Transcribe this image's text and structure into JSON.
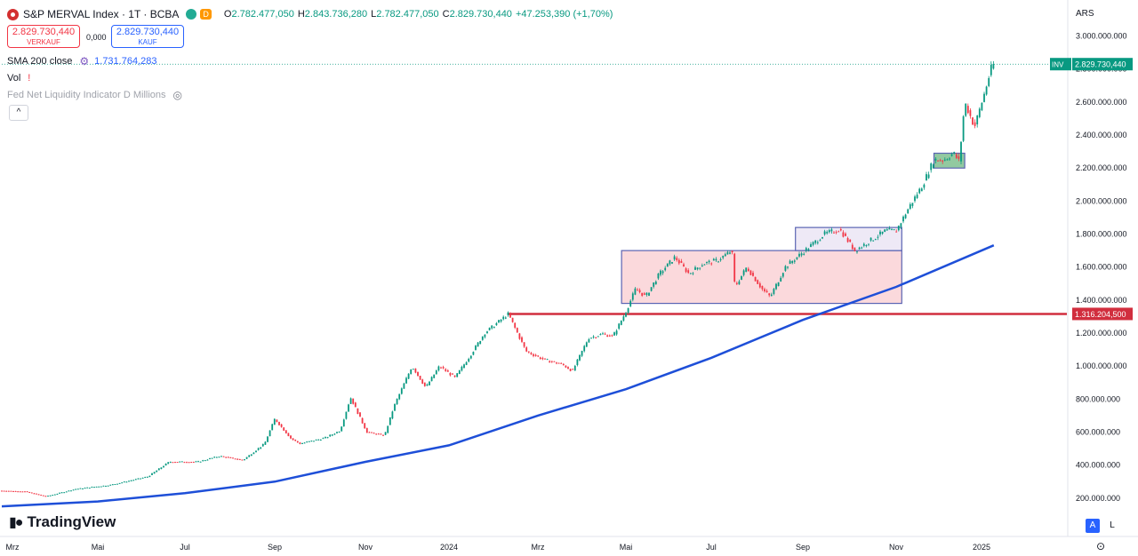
{
  "header": {
    "symbol": "S&P MERVAL Index · 1T · BCBA",
    "interval_badge": "D",
    "open_label": "O",
    "open": "2.782.477,050",
    "high_label": "H",
    "high": "2.843.736,280",
    "low_label": "L",
    "low": "2.782.477,050",
    "close_label": "C",
    "close": "2.829.730,440",
    "change": "+47.253,390 (+1,70%)"
  },
  "trade": {
    "sell_price": "2.829.730,440",
    "sell_label": "VERKAUF",
    "spread": "0,000",
    "buy_price": "2.829.730,440",
    "buy_label": "KAUF"
  },
  "indicators": {
    "sma_label": "SMA 200 close",
    "sma_value": "1.731.764,283",
    "vol_label": "Vol",
    "fed_label": "Fed Net Liquidity Indicator D Millions"
  },
  "logo": "TradingView",
  "currency": "ARS",
  "scale_buttons": {
    "a": "A",
    "l": "L"
  },
  "icons": {
    "symbol": "merval-logo-icon",
    "sma_settings": "gear-icon",
    "vol_warning": "warning-icon",
    "fed_visibility": "eye-off-icon",
    "collapse": "chevron-up-icon",
    "settings": "settings-icon"
  },
  "colors": {
    "up": "#089981",
    "down": "#f23645",
    "sma": "#1e4fd8",
    "level": "#d12e3e",
    "zone_fill": "#fbd5d8",
    "zone_border": "#5b64b3",
    "breakout_fill": "#7fbf8f"
  },
  "chart_data": {
    "type": "line",
    "title": "S&P MERVAL Index · 1T · BCBA",
    "xlabel": "",
    "ylabel": "",
    "ylim": [
      0,
      3100000000
    ],
    "grid": false,
    "x_tick_labels": [
      {
        "date": "2023-03-01",
        "label": "Mrz"
      },
      {
        "date": "2023-05-01",
        "label": "Mai"
      },
      {
        "date": "2023-07-01",
        "label": "Jul"
      },
      {
        "date": "2023-09-01",
        "label": "Sep"
      },
      {
        "date": "2023-11-01",
        "label": "Nov"
      },
      {
        "date": "2024-01-01",
        "label": "2024"
      },
      {
        "date": "2024-03-01",
        "label": "Mrz"
      },
      {
        "date": "2024-05-01",
        "label": "Mai"
      },
      {
        "date": "2024-07-01",
        "label": "Jul"
      },
      {
        "date": "2024-09-01",
        "label": "Sep"
      },
      {
        "date": "2024-11-01",
        "label": "Nov"
      },
      {
        "date": "2025-01-01",
        "label": "2025"
      }
    ],
    "y_ticks": [
      {
        "value": 200000000,
        "label": "200.000.000"
      },
      {
        "value": 400000000,
        "label": "400.000.000"
      },
      {
        "value": 600000000,
        "label": "600.000.000"
      },
      {
        "value": 800000000,
        "label": "800.000.000"
      },
      {
        "value": 1000000000,
        "label": "1.000.000.000"
      },
      {
        "value": 1200000000,
        "label": "1.200.000.000"
      },
      {
        "value": 1400000000,
        "label": "1.400.000.000"
      },
      {
        "value": 1600000000,
        "label": "1.600.000.000"
      },
      {
        "value": 1800000000,
        "label": "1.800.000.000"
      },
      {
        "value": 2000000000,
        "label": "2.000.000.000"
      },
      {
        "value": 2200000000,
        "label": "2.200.000.000"
      },
      {
        "value": 2400000000,
        "label": "2.400.000.000"
      },
      {
        "value": 2600000000,
        "label": "2.600.000.000"
      },
      {
        "value": 2800000000,
        "label": "2.800.000.000"
      },
      {
        "value": 3000000000,
        "label": "3.000.000.000"
      }
    ],
    "price_series": [
      {
        "date": "2023-02-22",
        "value": 245000000
      },
      {
        "date": "2023-03-10",
        "value": 240000000
      },
      {
        "date": "2023-03-25",
        "value": 210000000
      },
      {
        "date": "2023-04-15",
        "value": 255000000
      },
      {
        "date": "2023-05-10",
        "value": 280000000
      },
      {
        "date": "2023-06-05",
        "value": 330000000
      },
      {
        "date": "2023-06-20",
        "value": 420000000
      },
      {
        "date": "2023-07-10",
        "value": 420000000
      },
      {
        "date": "2023-07-25",
        "value": 455000000
      },
      {
        "date": "2023-08-10",
        "value": 430000000
      },
      {
        "date": "2023-08-25",
        "value": 530000000
      },
      {
        "date": "2023-09-01",
        "value": 680000000
      },
      {
        "date": "2023-09-12",
        "value": 560000000
      },
      {
        "date": "2023-09-18",
        "value": 530000000
      },
      {
        "date": "2023-10-05",
        "value": 565000000
      },
      {
        "date": "2023-10-15",
        "value": 610000000
      },
      {
        "date": "2023-10-22",
        "value": 810000000
      },
      {
        "date": "2023-11-02",
        "value": 600000000
      },
      {
        "date": "2023-11-15",
        "value": 580000000
      },
      {
        "date": "2023-11-22",
        "value": 760000000
      },
      {
        "date": "2023-12-05",
        "value": 1000000000
      },
      {
        "date": "2023-12-15",
        "value": 870000000
      },
      {
        "date": "2023-12-25",
        "value": 1000000000
      },
      {
        "date": "2024-01-05",
        "value": 930000000
      },
      {
        "date": "2024-01-15",
        "value": 1060000000
      },
      {
        "date": "2024-01-25",
        "value": 1200000000
      },
      {
        "date": "2024-02-05",
        "value": 1280000000
      },
      {
        "date": "2024-02-10",
        "value": 1316204500
      },
      {
        "date": "2024-02-22",
        "value": 1090000000
      },
      {
        "date": "2024-03-05",
        "value": 1040000000
      },
      {
        "date": "2024-03-18",
        "value": 1010000000
      },
      {
        "date": "2024-03-25",
        "value": 970000000
      },
      {
        "date": "2024-04-05",
        "value": 1170000000
      },
      {
        "date": "2024-04-15",
        "value": 1195000000
      },
      {
        "date": "2024-04-22",
        "value": 1180000000
      },
      {
        "date": "2024-05-01",
        "value": 1330000000
      },
      {
        "date": "2024-05-08",
        "value": 1470000000
      },
      {
        "date": "2024-05-15",
        "value": 1420000000
      },
      {
        "date": "2024-05-25",
        "value": 1560000000
      },
      {
        "date": "2024-06-05",
        "value": 1660000000
      },
      {
        "date": "2024-06-15",
        "value": 1560000000
      },
      {
        "date": "2024-06-25",
        "value": 1620000000
      },
      {
        "date": "2024-07-05",
        "value": 1640000000
      },
      {
        "date": "2024-07-15",
        "value": 1700000000
      },
      {
        "date": "2024-07-17",
        "value": 1480000000
      },
      {
        "date": "2024-07-25",
        "value": 1600000000
      },
      {
        "date": "2024-08-05",
        "value": 1460000000
      },
      {
        "date": "2024-08-10",
        "value": 1420000000
      },
      {
        "date": "2024-08-20",
        "value": 1600000000
      },
      {
        "date": "2024-08-28",
        "value": 1660000000
      },
      {
        "date": "2024-09-05",
        "value": 1720000000
      },
      {
        "date": "2024-09-15",
        "value": 1800000000
      },
      {
        "date": "2024-09-25",
        "value": 1830000000
      },
      {
        "date": "2024-10-05",
        "value": 1700000000
      },
      {
        "date": "2024-10-15",
        "value": 1760000000
      },
      {
        "date": "2024-10-25",
        "value": 1820000000
      },
      {
        "date": "2024-11-01",
        "value": 1820000000
      },
      {
        "date": "2024-11-10",
        "value": 1960000000
      },
      {
        "date": "2024-11-20",
        "value": 2100000000
      },
      {
        "date": "2024-11-28",
        "value": 2250000000
      },
      {
        "date": "2024-12-05",
        "value": 2250000000
      },
      {
        "date": "2024-12-12",
        "value": 2290000000
      },
      {
        "date": "2024-12-16",
        "value": 2240000000
      },
      {
        "date": "2024-12-20",
        "value": 2600000000
      },
      {
        "date": "2024-12-27",
        "value": 2450000000
      },
      {
        "date": "2025-01-02",
        "value": 2620000000
      },
      {
        "date": "2025-01-08",
        "value": 2800000000
      },
      {
        "date": "2025-01-10",
        "value": 2829730440
      }
    ],
    "sma_series": [
      {
        "date": "2023-02-22",
        "value": 150000000
      },
      {
        "date": "2023-05-01",
        "value": 180000000
      },
      {
        "date": "2023-07-01",
        "value": 230000000
      },
      {
        "date": "2023-09-01",
        "value": 300000000
      },
      {
        "date": "2023-11-01",
        "value": 420000000
      },
      {
        "date": "2024-01-01",
        "value": 520000000
      },
      {
        "date": "2024-03-01",
        "value": 700000000
      },
      {
        "date": "2024-05-01",
        "value": 860000000
      },
      {
        "date": "2024-07-01",
        "value": 1050000000
      },
      {
        "date": "2024-09-01",
        "value": 1280000000
      },
      {
        "date": "2024-11-01",
        "value": 1480000000
      },
      {
        "date": "2025-01-10",
        "value": 1731764283
      }
    ],
    "levels": [
      {
        "name": "horizontal-level",
        "value": 1316204500,
        "label": "1.316.204,500",
        "start_date": "2024-02-10"
      }
    ],
    "last_price_label": "2.829.730,440",
    "last_price_tag": "INV",
    "zones": [
      {
        "name": "consolidation-zone",
        "x0": "2024-04-28",
        "x1": "2024-11-05",
        "y0": 1380000000,
        "y1": 1700000000,
        "fill": "pink"
      },
      {
        "name": "upper-range-box",
        "x0": "2024-08-27",
        "x1": "2024-11-05",
        "y0": 1700000000,
        "y1": 1840000000,
        "fill": "lavender"
      },
      {
        "name": "breakout-box",
        "x0": "2024-11-28",
        "x1": "2024-12-20",
        "y0": 2200000000,
        "y1": 2290000000,
        "fill": "green"
      }
    ]
  }
}
